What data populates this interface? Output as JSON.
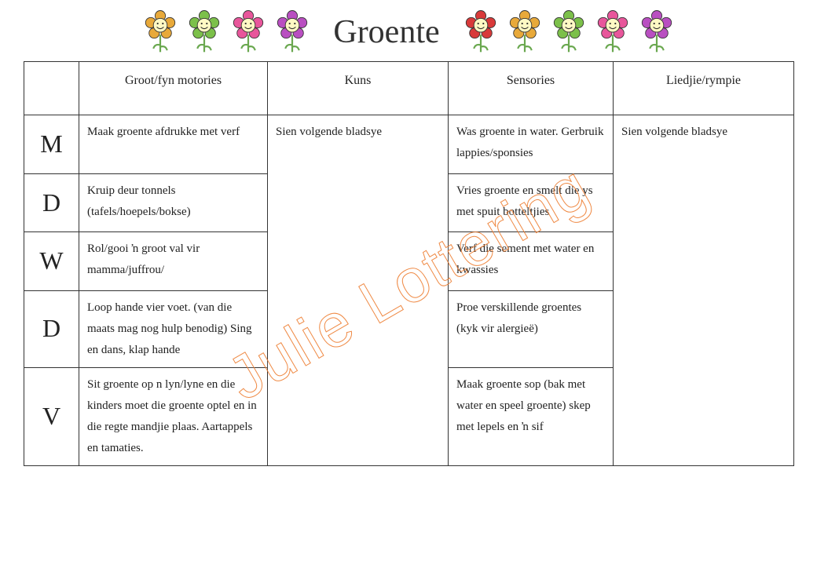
{
  "title": "Groente",
  "watermark": "Julie Lottering",
  "flower_colors_left": [
    "#e8a93a",
    "#7cc04a",
    "#e8569b",
    "#b94fc1"
  ],
  "flower_colors_right": [
    "#d83a3a",
    "#e8a93a",
    "#7cc04a",
    "#e8569b",
    "#b94fc1"
  ],
  "flower_center": "#fff9c4",
  "flower_stem": "#6aa84f",
  "columns": [
    "",
    "Groot/fyn motories",
    "Kuns",
    "Sensories",
    "Liedjie/rympie"
  ],
  "days": [
    "M",
    "D",
    "W",
    "D",
    "V"
  ],
  "kuns_merged": "Sien volgende bladsye",
  "lied_merged": "Sien volgende bladsye",
  "rows": [
    {
      "motor": "Maak groente afdrukke met verf",
      "sens": "Was groente in water. Gerbruik lappies/sponsies"
    },
    {
      "motor": "Kruip deur tonnels (tafels/hoepels/bokse)",
      "sens": "Vries groente en smelt die ys met spuit botteltjies"
    },
    {
      "motor": "Rol/gooi ŉ groot val vir mamma/juffrou/",
      "sens": "Verf die sement met water en kwassies"
    },
    {
      "motor": "Loop hande vier voet. (van die maats mag nog hulp benodig) Sing en dans, klap hande",
      "sens": "Proe verskillende groentes (kyk vir alergieë)"
    },
    {
      "motor": "Sit groente op n lyn/lyne en die kinders moet die groente optel en in die regte mandjie plaas. Aartappels en tamaties.",
      "sens": "Maak groente sop (bak met water en speel groente) skep met lepels en ŉ sif"
    }
  ]
}
